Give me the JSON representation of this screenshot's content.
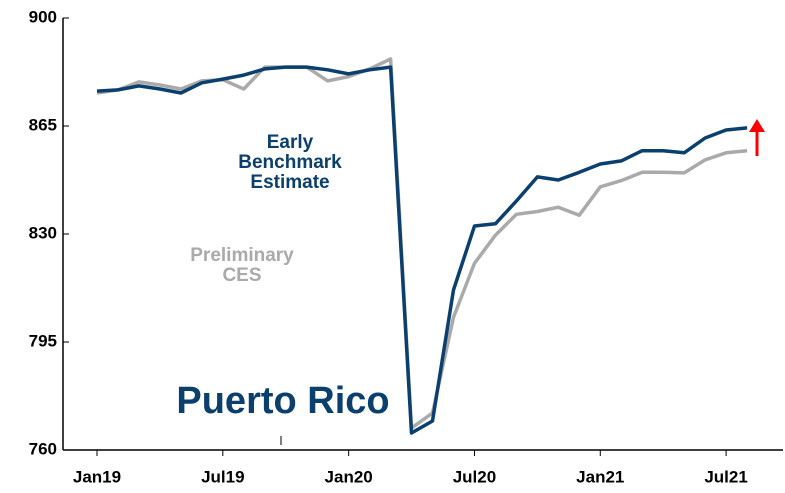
{
  "chart_data": {
    "type": "line",
    "title": "Puerto Rico",
    "categories": [
      "Jan19",
      null,
      null,
      null,
      null,
      null,
      "Jul19",
      null,
      null,
      null,
      null,
      null,
      "Jan20",
      null,
      null,
      null,
      null,
      null,
      "Jul20",
      null,
      null,
      null,
      null,
      null,
      "Jan21",
      null,
      null,
      null,
      null,
      null,
      "Jul21",
      null
    ],
    "series": [
      {
        "name": "Early Benchmark Estimate",
        "color": "#0b3f6e",
        "values": [
          876.3,
          876.7,
          878,
          877,
          875.7,
          879,
          880.2,
          881.5,
          883.5,
          884.1,
          884.1,
          883.2,
          881.9,
          883.2,
          884.1,
          765.5,
          769.4,
          811.9,
          832.6,
          833.3,
          840.7,
          848.5,
          847.5,
          850,
          852.7,
          853.7,
          857,
          857,
          856.3,
          861.1,
          863.7,
          864.4
        ]
      },
      {
        "name": "Preliminary CES",
        "color": "#aaaaaa",
        "values": [
          875.7,
          876.7,
          879.3,
          878.3,
          877,
          879.6,
          880,
          877,
          884.1,
          884.1,
          884.1,
          879.6,
          881,
          883.5,
          886.7,
          767.1,
          772,
          803,
          820.5,
          829.6,
          836.4,
          837.3,
          838.7,
          836.1,
          845.3,
          847.3,
          850,
          850,
          849.8,
          854,
          856.3,
          857
        ]
      }
    ],
    "legend_lines": [
      [
        "Early",
        "Benchmark",
        "Estimate"
      ],
      [
        "Preliminary",
        "CES"
      ]
    ],
    "ylim": [
      760,
      900
    ],
    "yticks": [
      760,
      795,
      830,
      865,
      900
    ],
    "grid": false
  }
}
